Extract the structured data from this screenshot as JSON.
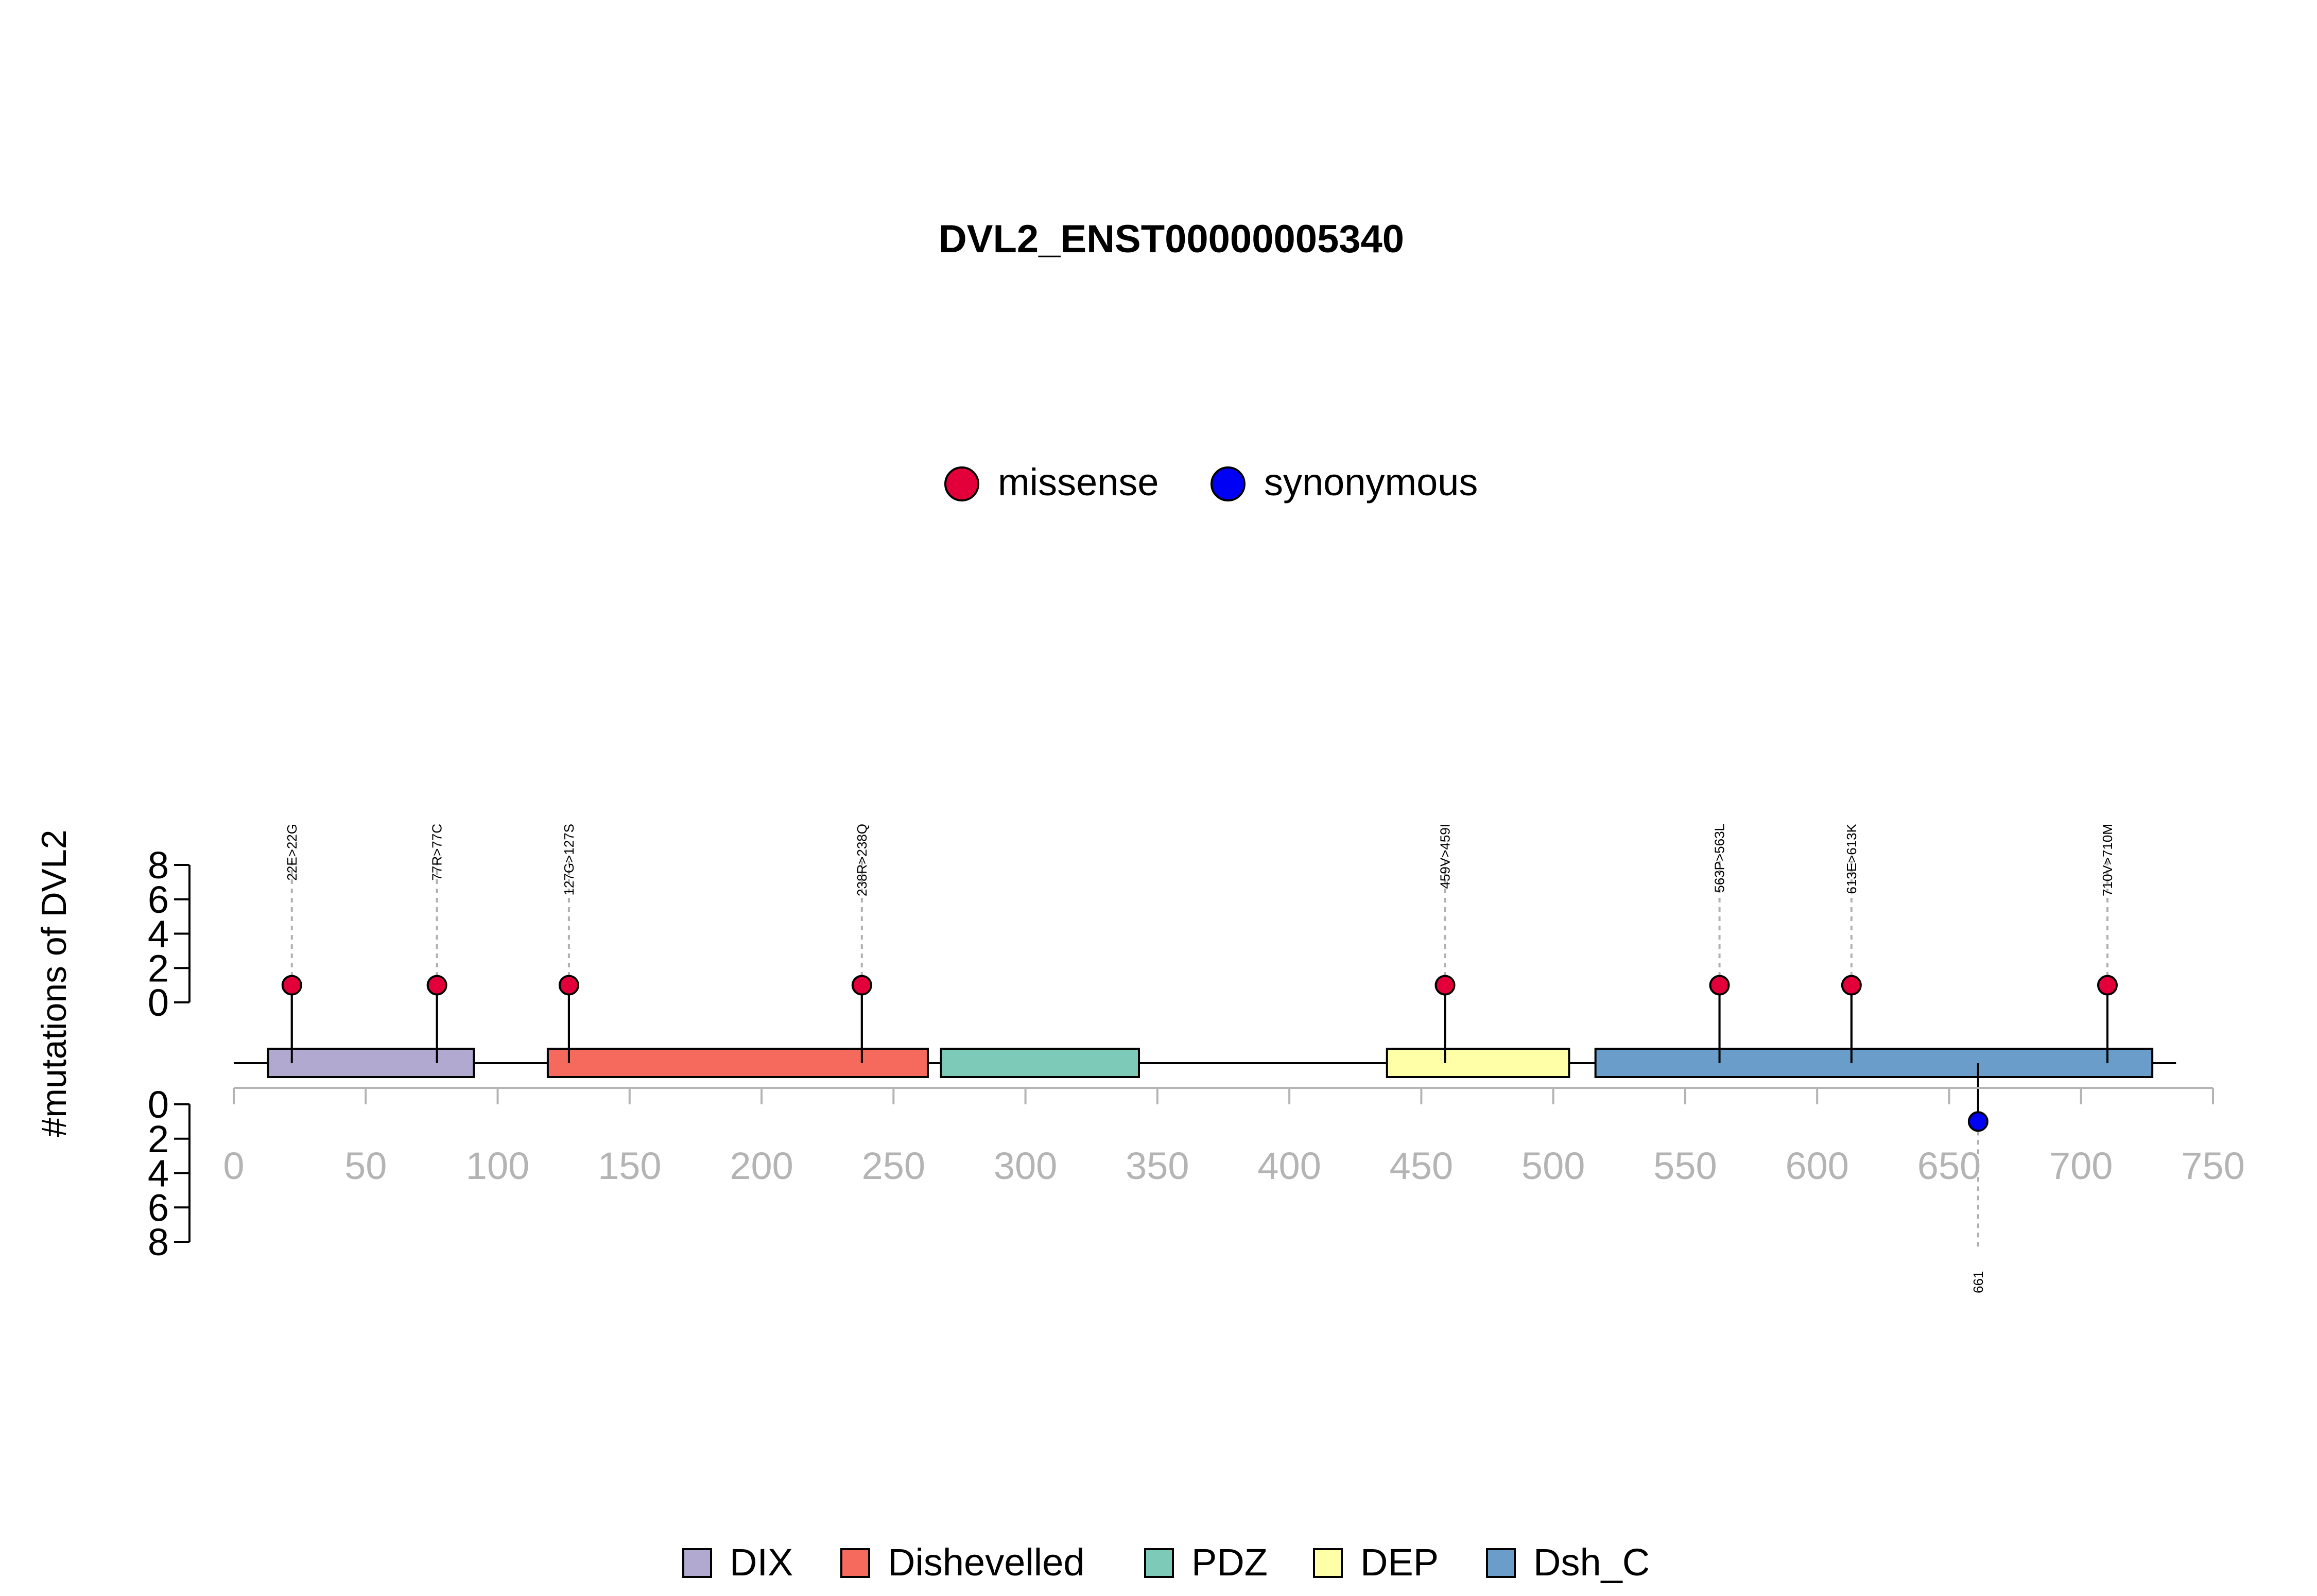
{
  "chart_data": {
    "type": "lollipop",
    "title": "DVL2_ENST00000005340",
    "ylabel": "#mutations of DVL2",
    "x_ticks": [
      0,
      50,
      100,
      150,
      200,
      250,
      300,
      350,
      400,
      450,
      500,
      550,
      600,
      650,
      700,
      750
    ],
    "xlim": [
      0,
      750
    ],
    "upper_y_ticks": [
      0,
      2,
      4,
      6,
      8
    ],
    "lower_y_ticks": [
      0,
      2,
      4,
      6,
      8
    ],
    "ylim": [
      0,
      8
    ],
    "protein_length": 736,
    "legend_mutation_types": [
      {
        "label": "missense",
        "color": "#E3003A"
      },
      {
        "label": "synonymous",
        "color": "#0000F5"
      }
    ],
    "domains": [
      {
        "name": "DIX",
        "start": 13,
        "end": 91,
        "color": "#B1A9CF"
      },
      {
        "name": "Dishevelled",
        "start": 119,
        "end": 263,
        "color": "#F66A5E"
      },
      {
        "name": "PDZ",
        "start": 268,
        "end": 343,
        "color": "#7ECAB8"
      },
      {
        "name": "DEP",
        "start": 437,
        "end": 506,
        "color": "#FFFFA8"
      },
      {
        "name": "Dsh_C",
        "start": 516,
        "end": 727,
        "color": "#6A9DC9"
      }
    ],
    "mutations": [
      {
        "position": 22,
        "label": "22E>22G",
        "count": 1,
        "type": "missense",
        "side": "top"
      },
      {
        "position": 77,
        "label": "77R>77C",
        "count": 1,
        "type": "missense",
        "side": "top"
      },
      {
        "position": 127,
        "label": "127G>127S",
        "count": 1,
        "type": "missense",
        "side": "top"
      },
      {
        "position": 238,
        "label": "238R>238Q",
        "count": 1,
        "type": "missense",
        "side": "top"
      },
      {
        "position": 459,
        "label": "459V>459I",
        "count": 1,
        "type": "missense",
        "side": "top"
      },
      {
        "position": 563,
        "label": "563P>563L",
        "count": 1,
        "type": "missense",
        "side": "top"
      },
      {
        "position": 613,
        "label": "613E>613K",
        "count": 1,
        "type": "missense",
        "side": "top"
      },
      {
        "position": 710,
        "label": "710V>710M",
        "count": 1,
        "type": "missense",
        "side": "top"
      },
      {
        "position": 661,
        "label": "661",
        "count": 1,
        "type": "synonymous",
        "side": "bottom"
      }
    ]
  }
}
